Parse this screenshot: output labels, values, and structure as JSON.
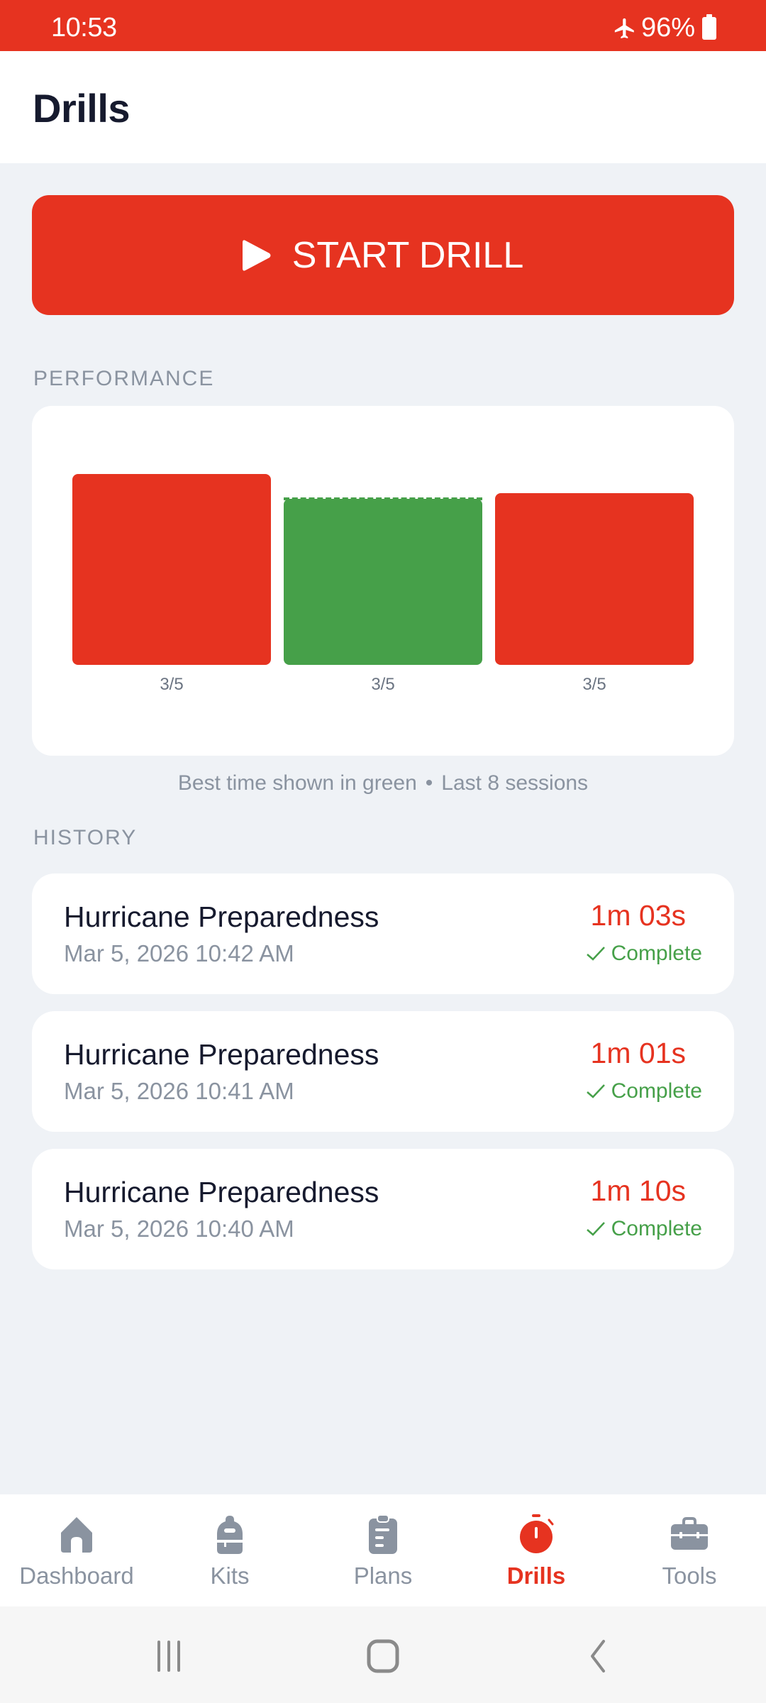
{
  "status_bar": {
    "time": "10:53",
    "battery_percent": "96%",
    "icons": [
      "airplane-mode-icon",
      "battery-icon"
    ]
  },
  "header": {
    "title": "Drills"
  },
  "start_button": {
    "label": "START DRILL",
    "icon": "play-icon"
  },
  "performance": {
    "section_label": "PERFORMANCE",
    "caption_left": "Best time shown in green",
    "caption_sep": "•",
    "caption_right": "Last 8 sessions"
  },
  "chart_data": {
    "type": "bar",
    "title": "",
    "xlabel": "",
    "ylabel": "",
    "categories": [
      "3/5",
      "3/5",
      "3/5"
    ],
    "values": [
      70,
      61,
      63
    ],
    "value_units": "seconds",
    "value_labels": [
      "1m 10s",
      "1m 01s",
      "1m 03s"
    ],
    "colors": [
      "#e63320",
      "#46a049",
      "#e63320"
    ],
    "best_index": 1,
    "best_line": {
      "style": "dashed",
      "color": "#46a049",
      "value": 61
    },
    "grid": false,
    "legend": "none"
  },
  "history": {
    "section_label": "HISTORY",
    "items": [
      {
        "title": "Hurricane Preparedness",
        "date": "Mar 5, 2026  10:42 AM",
        "duration": "1m 03s",
        "status": "Complete"
      },
      {
        "title": "Hurricane Preparedness",
        "date": "Mar 5, 2026  10:41 AM",
        "duration": "1m 01s",
        "status": "Complete"
      },
      {
        "title": "Hurricane Preparedness",
        "date": "Mar 5, 2026  10:40 AM",
        "duration": "1m 10s",
        "status": "Complete"
      }
    ]
  },
  "bottom_nav": {
    "items": [
      {
        "label": "Dashboard",
        "icon": "home-icon",
        "active": false
      },
      {
        "label": "Kits",
        "icon": "backpack-icon",
        "active": false
      },
      {
        "label": "Plans",
        "icon": "clipboard-icon",
        "active": false
      },
      {
        "label": "Drills",
        "icon": "stopwatch-icon",
        "active": true
      },
      {
        "label": "Tools",
        "icon": "toolbox-icon",
        "active": false
      }
    ]
  },
  "colors": {
    "accent": "#e63320",
    "success": "#46a049",
    "muted": "#8a93a0",
    "background": "#eff2f6",
    "text": "#161a2e"
  }
}
